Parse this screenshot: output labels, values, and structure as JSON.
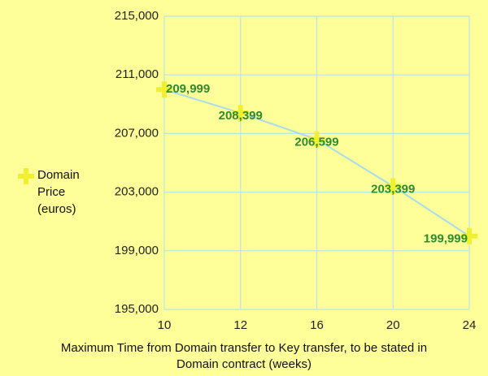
{
  "chart_data": {
    "type": "line",
    "x_label": "Maximum Time from Domain transfer to Key transfer, to be stated in Domain contract (weeks)",
    "categories": [
      "10",
      "12",
      "16",
      "20",
      "24"
    ],
    "series": [
      {
        "name": "Domain Price (euros)",
        "color": "#f0f030",
        "line_color": "#a8dcec",
        "label_color": "#2e8b2e",
        "values": [
          209999,
          208399,
          206599,
          203399,
          199999
        ],
        "value_labels": [
          "209,999",
          "208,399",
          "206,599",
          "203,399",
          "199,999"
        ]
      }
    ],
    "ylim": [
      195000,
      215000
    ],
    "yticks": [
      {
        "value": 195000,
        "label": "195,000"
      },
      {
        "value": 199000,
        "label": "199,000"
      },
      {
        "value": 203000,
        "label": "203,000"
      },
      {
        "value": 207000,
        "label": "207,000"
      },
      {
        "value": 211000,
        "label": "211,000"
      },
      {
        "value": 215000,
        "label": "215,000"
      }
    ],
    "grid": true,
    "grid_color": "#b8e4ec"
  }
}
